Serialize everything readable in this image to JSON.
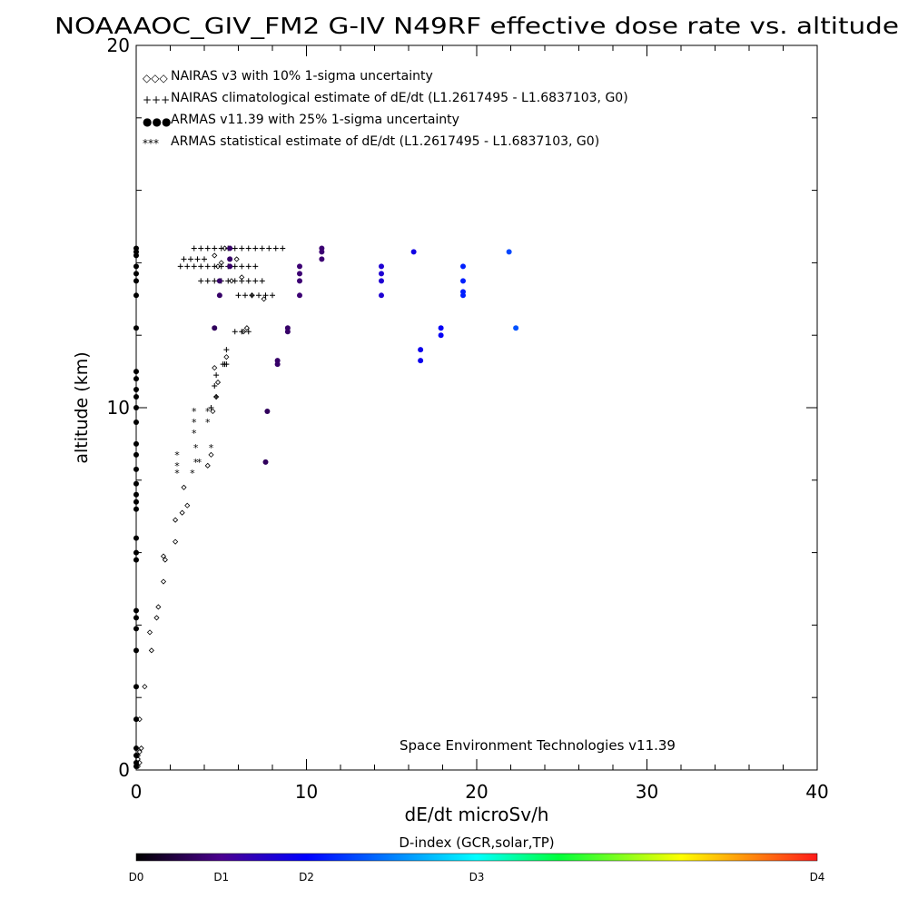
{
  "chart_data": {
    "type": "scatter",
    "title": "NOAAAOC_GIV_FM2 G-IV   N49RF  effective dose rate vs. altitude",
    "xlabel": "dE/dt microSv/h",
    "ylabel": "altitude (km)",
    "xlim": [
      0,
      40
    ],
    "ylim": [
      0,
      20
    ],
    "x_ticks": [
      "0",
      "10",
      "20",
      "30",
      "40"
    ],
    "y_ticks": [
      "0",
      "10",
      "20"
    ],
    "legend_position": "top-left",
    "legend": [
      {
        "symbol": "◇◇◇",
        "label": "NAIRAS v3 with 10% 1-sigma uncertainty"
      },
      {
        "symbol": "+++",
        "label": "NAIRAS climatological estimate of dE/dt (L1.2617495 - L1.6837103, G0)"
      },
      {
        "symbol": "●●●",
        "label": "ARMAS v11.39 with 25% 1-sigma uncertainty"
      },
      {
        "symbol": "***",
        "label": "ARMAS statistical estimate of dE/dt (L1.2617495 - L1.6837103, G0)"
      }
    ],
    "annotation": "Space Environment Technologies v11.39",
    "colorbar": {
      "title": "D-index (GCR,solar,TP)",
      "labels": [
        {
          "text": "D0",
          "pos": 0.0
        },
        {
          "text": "D1",
          "pos": 0.125
        },
        {
          "text": "D2",
          "pos": 0.25
        },
        {
          "text": "D3",
          "pos": 0.5
        },
        {
          "text": "D4",
          "pos": 1.0
        }
      ]
    },
    "series": [
      {
        "name": "NAIRAS v3 with 10% 1-sigma uncertainty",
        "marker": "diamond",
        "color": "#000000",
        "points": [
          [
            0.1,
            0.1
          ],
          [
            0.2,
            0.2
          ],
          [
            0.1,
            0.3
          ],
          [
            0.2,
            0.5
          ],
          [
            0.3,
            0.6
          ],
          [
            0.1,
            0.4
          ],
          [
            0.2,
            1.4
          ],
          [
            0.5,
            2.3
          ],
          [
            0.9,
            3.3
          ],
          [
            0.8,
            3.8
          ],
          [
            1.2,
            4.2
          ],
          [
            1.3,
            4.5
          ],
          [
            1.6,
            5.2
          ],
          [
            1.7,
            5.8
          ],
          [
            1.6,
            5.9
          ],
          [
            2.3,
            6.3
          ],
          [
            2.3,
            6.9
          ],
          [
            2.7,
            7.1
          ],
          [
            3.0,
            7.3
          ],
          [
            2.8,
            7.8
          ],
          [
            4.2,
            8.4
          ],
          [
            4.4,
            8.7
          ],
          [
            4.5,
            9.9
          ],
          [
            4.7,
            10.3
          ],
          [
            4.8,
            10.7
          ],
          [
            4.6,
            11.1
          ],
          [
            5.3,
            11.4
          ],
          [
            6.3,
            12.1
          ],
          [
            6.5,
            12.2
          ],
          [
            4.8,
            13.9
          ],
          [
            5.2,
            14.4
          ],
          [
            5.6,
            13.5
          ],
          [
            6.2,
            13.6
          ],
          [
            7.5,
            13.0
          ],
          [
            6.8,
            13.1
          ],
          [
            5.0,
            14.0
          ],
          [
            4.6,
            14.2
          ],
          [
            5.9,
            14.1
          ]
        ]
      },
      {
        "name": "NAIRAS climatological estimate of dE/dt (L1.2617495 - L1.6837103, G0)",
        "marker": "plus",
        "color": "#000000",
        "points": [
          [
            3.4,
            14.4
          ],
          [
            3.8,
            14.4
          ],
          [
            4.2,
            14.4
          ],
          [
            4.6,
            14.4
          ],
          [
            5.0,
            14.4
          ],
          [
            5.4,
            14.4
          ],
          [
            5.8,
            14.4
          ],
          [
            6.2,
            14.4
          ],
          [
            6.6,
            14.4
          ],
          [
            7.0,
            14.4
          ],
          [
            7.4,
            14.4
          ],
          [
            7.8,
            14.4
          ],
          [
            8.2,
            14.4
          ],
          [
            8.6,
            14.4
          ],
          [
            2.6,
            13.9
          ],
          [
            3.0,
            13.9
          ],
          [
            3.4,
            13.9
          ],
          [
            3.8,
            13.9
          ],
          [
            4.2,
            13.9
          ],
          [
            4.6,
            13.9
          ],
          [
            5.0,
            13.9
          ],
          [
            5.4,
            13.9
          ],
          [
            5.8,
            13.9
          ],
          [
            6.2,
            13.9
          ],
          [
            6.6,
            13.9
          ],
          [
            7.0,
            13.9
          ],
          [
            2.8,
            14.1
          ],
          [
            3.2,
            14.1
          ],
          [
            3.6,
            14.1
          ],
          [
            4.0,
            14.1
          ],
          [
            3.8,
            13.5
          ],
          [
            4.2,
            13.5
          ],
          [
            4.6,
            13.5
          ],
          [
            5.0,
            13.5
          ],
          [
            5.4,
            13.5
          ],
          [
            5.8,
            13.5
          ],
          [
            6.2,
            13.5
          ],
          [
            6.6,
            13.5
          ],
          [
            7.0,
            13.5
          ],
          [
            7.4,
            13.5
          ],
          [
            6.0,
            13.1
          ],
          [
            6.4,
            13.1
          ],
          [
            6.8,
            13.1
          ],
          [
            7.2,
            13.1
          ],
          [
            7.6,
            13.1
          ],
          [
            8.0,
            13.1
          ],
          [
            5.8,
            12.1
          ],
          [
            6.2,
            12.1
          ],
          [
            6.6,
            12.1
          ],
          [
            5.3,
            11.6
          ],
          [
            5.3,
            11.2
          ],
          [
            5.1,
            11.2
          ],
          [
            5.2,
            11.2
          ],
          [
            4.7,
            10.9
          ],
          [
            4.6,
            10.6
          ],
          [
            4.7,
            10.3
          ],
          [
            4.4,
            10.0
          ]
        ]
      },
      {
        "name": "ARMAS statistical estimate of dE/dt (L1.2617495 - L1.6837103, G0)",
        "marker": "asterisk",
        "color": "#000000",
        "points": [
          [
            3.4,
            9.9
          ],
          [
            3.4,
            9.6
          ],
          [
            3.4,
            9.3
          ],
          [
            4.2,
            9.9
          ],
          [
            4.2,
            9.6
          ],
          [
            2.4,
            8.7
          ],
          [
            2.4,
            8.4
          ],
          [
            2.4,
            8.2
          ],
          [
            3.5,
            8.9
          ],
          [
            3.5,
            8.5
          ],
          [
            3.3,
            8.2
          ],
          [
            4.4,
            8.9
          ],
          [
            3.7,
            8.5
          ]
        ]
      },
      {
        "name": "ARMAS v11.39 with 25% 1-sigma uncertainty",
        "marker": "dot",
        "points": [
          [
            7.6,
            8.5,
            0.08
          ],
          [
            7.7,
            9.9,
            0.08
          ],
          [
            8.3,
            11.2,
            0.09
          ],
          [
            8.3,
            11.3,
            0.09
          ],
          [
            4.6,
            12.2,
            0.08
          ],
          [
            8.9,
            12.2,
            0.09
          ],
          [
            8.9,
            12.1,
            0.09
          ],
          [
            4.9,
            13.1,
            0.09
          ],
          [
            5.5,
            13.9,
            0.09
          ],
          [
            5.5,
            14.1,
            0.09
          ],
          [
            5.5,
            14.4,
            0.09
          ],
          [
            4.9,
            13.5,
            0.09
          ],
          [
            9.6,
            13.1,
            0.1
          ],
          [
            9.6,
            13.5,
            0.1
          ],
          [
            9.6,
            13.7,
            0.1
          ],
          [
            9.6,
            13.9,
            0.1
          ],
          [
            10.9,
            14.1,
            0.1
          ],
          [
            10.9,
            14.4,
            0.1
          ],
          [
            10.9,
            14.3,
            0.1
          ],
          [
            14.4,
            13.1,
            0.2
          ],
          [
            14.4,
            13.5,
            0.2
          ],
          [
            14.4,
            13.7,
            0.2
          ],
          [
            14.4,
            13.9,
            0.2
          ],
          [
            16.3,
            14.3,
            0.22
          ],
          [
            16.7,
            11.3,
            0.23
          ],
          [
            16.7,
            11.6,
            0.23
          ],
          [
            17.9,
            12.0,
            0.24
          ],
          [
            17.9,
            12.2,
            0.24
          ],
          [
            19.2,
            13.1,
            0.28
          ],
          [
            19.2,
            13.2,
            0.28
          ],
          [
            19.2,
            13.5,
            0.28
          ],
          [
            19.2,
            13.9,
            0.28
          ],
          [
            21.9,
            14.3,
            0.32
          ],
          [
            22.3,
            12.2,
            0.33
          ],
          [
            0.0,
            14.4,
            0.0
          ],
          [
            0.0,
            14.3,
            0.0
          ],
          [
            0.0,
            14.2,
            0.0
          ],
          [
            0.0,
            13.9,
            0.0
          ],
          [
            0.0,
            13.7,
            0.0
          ],
          [
            0.0,
            13.5,
            0.0
          ],
          [
            0.0,
            13.1,
            0.0
          ],
          [
            0.0,
            12.2,
            0.0
          ],
          [
            0.0,
            11.0,
            0.0
          ],
          [
            0.0,
            10.8,
            0.0
          ],
          [
            0.0,
            10.5,
            0.0
          ],
          [
            0.0,
            10.3,
            0.0
          ],
          [
            0.0,
            10.0,
            0.0
          ],
          [
            0.0,
            9.6,
            0.0
          ],
          [
            0.0,
            9.0,
            0.0
          ],
          [
            0.0,
            8.7,
            0.0
          ],
          [
            0.0,
            8.3,
            0.0
          ],
          [
            0.0,
            7.9,
            0.0
          ],
          [
            0.0,
            7.6,
            0.0
          ],
          [
            0.0,
            7.4,
            0.0
          ],
          [
            0.0,
            7.2,
            0.0
          ],
          [
            0.0,
            6.4,
            0.0
          ],
          [
            0.0,
            6.0,
            0.0
          ],
          [
            0.0,
            5.8,
            0.0
          ],
          [
            0.0,
            4.4,
            0.0
          ],
          [
            0.0,
            4.2,
            0.0
          ],
          [
            0.0,
            3.9,
            0.0
          ],
          [
            0.0,
            3.3,
            0.0
          ],
          [
            0.0,
            2.3,
            0.0
          ],
          [
            0.0,
            1.4,
            0.0
          ],
          [
            0.0,
            0.6,
            0.0
          ],
          [
            0.0,
            0.4,
            0.0
          ],
          [
            0.0,
            0.2,
            0.0
          ],
          [
            0.0,
            0.1,
            0.0
          ]
        ]
      }
    ]
  }
}
